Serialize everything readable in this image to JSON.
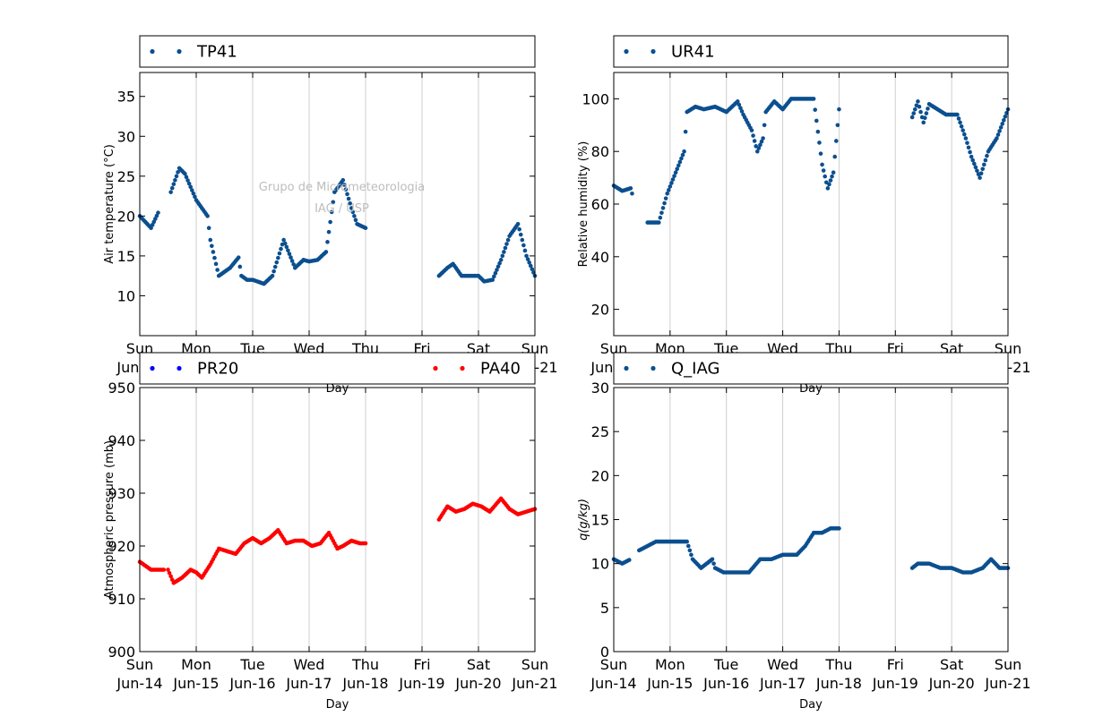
{
  "watermark": {
    "line1": "Grupo de Micrometeorologia",
    "line2": "IAG / USP"
  },
  "x_axis": {
    "xlabel": "Day",
    "tick_lines": [
      [
        "Sun",
        "Jun-14"
      ],
      [
        "Mon",
        "Jun-15"
      ],
      [
        "Tue",
        "Jun-16"
      ],
      [
        "Wed",
        "Jun-17"
      ],
      [
        "Thu",
        "Jun-18"
      ],
      [
        "Fri",
        "Jun-19"
      ],
      [
        "Sat",
        "Jun-20"
      ],
      [
        "Sun",
        "Jun-21"
      ]
    ]
  },
  "chart_data": [
    {
      "type": "scatter",
      "xlabel": "Day",
      "ylabel": "Air temperature (°C)",
      "xlim": [
        0,
        7
      ],
      "ylim": [
        5,
        38
      ],
      "yticks": [
        10,
        15,
        20,
        25,
        30,
        35
      ],
      "grid": "x",
      "legend": "top",
      "series": [
        {
          "name": "TP41",
          "color": "#0b4f8f",
          "x": [
            0,
            0.2,
            0.35,
            0.5,
            0.55,
            0.7,
            0.8,
            1.0,
            1.2,
            1.25,
            1.4,
            1.6,
            1.75,
            1.8,
            1.9,
            2.0,
            2.2,
            2.35,
            2.55,
            2.75,
            2.9,
            3.0,
            3.15,
            3.3,
            3.45,
            3.6,
            3.75,
            3.85,
            4.0
          ],
          "y": [
            20,
            18.5,
            20.8,
            null,
            23,
            26,
            25.3,
            22,
            20,
            17,
            12.5,
            13.5,
            14.8,
            12.5,
            12,
            12,
            11.5,
            12.5,
            17,
            13.5,
            14.5,
            14.3,
            14.5,
            15.5,
            23,
            24.5,
            21,
            19,
            18.5
          ]
        },
        {
          "name": "TP41",
          "color": "#0b4f8f",
          "x": [
            5.3,
            5.45,
            5.55,
            5.7,
            5.85,
            6.0,
            6.1,
            6.25,
            6.4,
            6.55,
            6.7,
            6.85,
            7.0
          ],
          "y": [
            12.5,
            13.5,
            14,
            12.5,
            12.5,
            12.5,
            11.8,
            12,
            14.5,
            17.5,
            19,
            15,
            12.5
          ]
        }
      ]
    },
    {
      "type": "scatter",
      "xlabel": "Day",
      "ylabel": "Relative humidity (%)",
      "xlim": [
        0,
        7
      ],
      "ylim": [
        10,
        110
      ],
      "yticks": [
        20,
        40,
        60,
        80,
        100
      ],
      "grid": "x",
      "legend": "top",
      "series": [
        {
          "name": "UR41",
          "color": "#0b4f8f",
          "x": [
            0,
            0.15,
            0.3,
            0.35,
            0.45,
            0.6,
            0.8,
            0.95,
            1.1,
            1.25,
            1.3,
            1.45,
            1.6,
            1.8,
            2.0,
            2.2,
            2.3,
            2.45,
            2.55,
            2.65,
            2.7,
            2.85,
            3.0,
            3.15,
            3.35,
            3.55,
            3.7,
            3.8,
            3.9,
            4.0
          ],
          "y": [
            67,
            65,
            66,
            62,
            null,
            53,
            53,
            64,
            72,
            80,
            95,
            97,
            96,
            97,
            95,
            99,
            94,
            88,
            80,
            85,
            95,
            99,
            96,
            100,
            100,
            100,
            75,
            66,
            72,
            96
          ]
        },
        {
          "name": "UR41",
          "color": "#0b4f8f",
          "x": [
            5.3,
            5.4,
            5.5,
            5.6,
            5.75,
            5.9,
            6.1,
            6.25,
            6.35,
            6.5,
            6.65,
            6.8,
            7.0
          ],
          "y": [
            93,
            99,
            91,
            98,
            96,
            94,
            94,
            85,
            78,
            70,
            80,
            85,
            96
          ]
        }
      ]
    },
    {
      "type": "scatter",
      "xlabel": "Day",
      "ylabel": "Atmospheric pressure (mb)",
      "xlim": [
        0,
        7
      ],
      "ylim": [
        900,
        950
      ],
      "yticks": [
        900,
        910,
        920,
        930,
        940,
        950
      ],
      "grid": "x",
      "legend": "top",
      "series": [
        {
          "name": "PR20",
          "color": "#0000ff",
          "x": [],
          "y": []
        },
        {
          "name": "PA40",
          "color": "#ff0000",
          "x": [
            0,
            0.2,
            0.35,
            0.45,
            null,
            0.5,
            0.6,
            0.75,
            0.9,
            1.0,
            1.1,
            1.25,
            1.4,
            1.55,
            1.7,
            1.85,
            2.0,
            2.15,
            2.3,
            2.45,
            2.6,
            2.75,
            2.9,
            3.05,
            3.2,
            3.35,
            3.5,
            3.6,
            3.75,
            3.9,
            4.0
          ],
          "y": [
            917,
            915.5,
            915.5,
            915.5,
            null,
            915.5,
            913,
            914,
            915.5,
            915,
            914,
            916.5,
            919.5,
            919,
            918.5,
            920.5,
            921.5,
            920.5,
            921.5,
            923,
            920.5,
            921,
            921,
            920,
            920.5,
            922.5,
            919.5,
            920,
            921,
            920.5,
            920.5
          ]
        },
        {
          "name": "PA40",
          "color": "#ff0000",
          "x": [
            5.3,
            5.45,
            5.6,
            5.75,
            5.9,
            6.05,
            6.2,
            6.4,
            6.55,
            6.7,
            6.85,
            7.0
          ],
          "y": [
            925,
            927.5,
            926.5,
            927,
            928,
            927.5,
            926.5,
            929,
            927,
            926,
            926.5,
            927
          ]
        }
      ]
    },
    {
      "type": "scatter",
      "xlabel": "Day",
      "ylabel": "q(g/kg)",
      "xlim": [
        0,
        7
      ],
      "ylim": [
        0,
        30
      ],
      "yticks": [
        0,
        5,
        10,
        15,
        20,
        25,
        30
      ],
      "grid": "x",
      "legend": "top",
      "series": [
        {
          "name": "Q_IAG",
          "color": "#0b4f8f",
          "x": [
            0,
            0.15,
            0.3,
            null,
            0.45,
            0.6,
            0.75,
            1.0,
            1.2,
            1.3,
            1.4,
            1.55,
            1.65,
            1.75,
            1.8,
            1.95,
            2.2,
            2.4,
            2.6,
            2.8,
            3.0,
            3.25,
            3.4,
            3.55,
            3.7,
            3.85,
            4.0
          ],
          "y": [
            10.5,
            10,
            10.5,
            null,
            11.5,
            12,
            12.5,
            12.5,
            12.5,
            12.5,
            10.5,
            9.5,
            10,
            10.5,
            9.5,
            9,
            9,
            9,
            10.5,
            10.5,
            11,
            11,
            12,
            13.5,
            13.5,
            14,
            14
          ]
        },
        {
          "name": "Q_IAG",
          "color": "#0b4f8f",
          "x": [
            5.3,
            5.4,
            5.6,
            5.8,
            6.0,
            6.2,
            6.35,
            6.55,
            6.7,
            6.85,
            7.0
          ],
          "y": [
            9.5,
            10,
            10,
            9.5,
            9.5,
            9,
            9,
            9.5,
            10.5,
            9.5,
            9.5
          ]
        }
      ]
    }
  ]
}
